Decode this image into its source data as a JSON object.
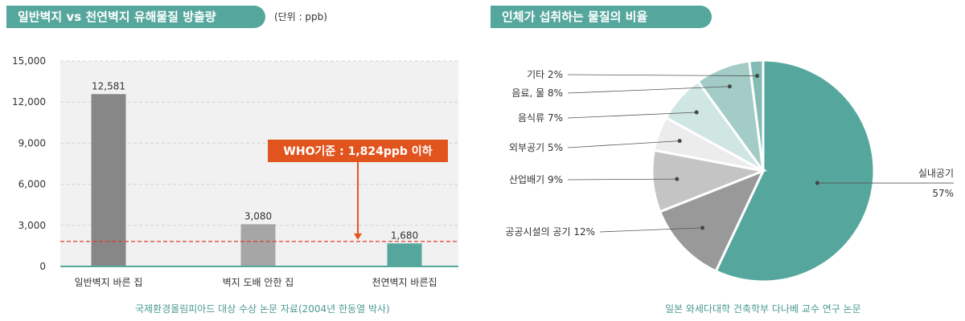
{
  "left_panel": {
    "title": "일반벽지 vs 천연벽지 유해물질 방출량",
    "unit": "(단위 : ppb)",
    "source": "국제환경올림피아드 대상 수상 논문 자료(2004년 한동열 박사)"
  },
  "right_panel": {
    "title": "인체가 섭취하는 물질의 비율",
    "source": "일본 와세다대학 건축학부 다나베 교수 연구 논문"
  },
  "colors": {
    "teal": "#55a79d",
    "bar_dark": "#878787",
    "bar_mid": "#a6a6a6",
    "threshold_red": "#e03c2e",
    "callout_orange": "#e2541e",
    "plot_bg": "#f1f1f1"
  },
  "chart_data": [
    {
      "type": "bar",
      "categories": [
        "일반벽지 바른 집",
        "벽지 도배 안한 집",
        "천연벽지 바른집"
      ],
      "values": [
        12581,
        3080,
        1680
      ],
      "value_labels": [
        "12,581",
        "3,080",
        "1,680"
      ],
      "bar_colors": [
        "#878787",
        "#a6a6a6",
        "#55a79d"
      ],
      "y_ticks": [
        0,
        3000,
        6000,
        9000,
        12000,
        15000
      ],
      "y_tick_labels": [
        "0",
        "3,000",
        "6,000",
        "9,000",
        "12,000",
        "15,000"
      ],
      "ylim": [
        0,
        15000
      ],
      "grid": true,
      "threshold": {
        "value": 1824,
        "label": "WHO기준 : 1,824ppb 이하"
      }
    },
    {
      "type": "pie",
      "slices": [
        {
          "label": "실내공기",
          "value": 57,
          "value_label": "57%",
          "color": "#55a79d"
        },
        {
          "label": "공공시설의 공기 12%",
          "value": 12,
          "color": "#999999"
        },
        {
          "label": "산업배기 9%",
          "value": 9,
          "color": "#c4c4c4"
        },
        {
          "label": "외부공기 5%",
          "value": 5,
          "color": "#ececec"
        },
        {
          "label": "음식류 7%",
          "value": 7,
          "color": "#cfe6e3"
        },
        {
          "label": "음료, 물 8%",
          "value": 8,
          "color": "#a3ccc7"
        },
        {
          "label": "기타 2%",
          "value": 2,
          "color": "#84bcb5"
        }
      ]
    }
  ]
}
